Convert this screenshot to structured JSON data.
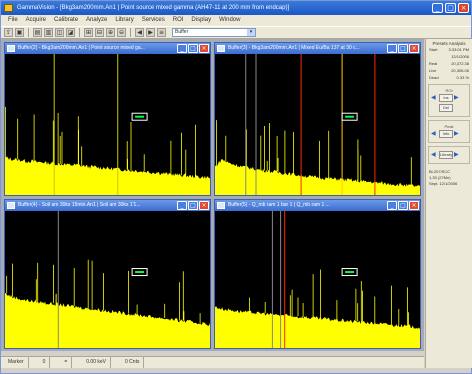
{
  "window": {
    "title": "GammaVision - [Bkg3am200mm.An1 | Point source mixed gamma (AH47-11 at 200 mm from endcap)]",
    "minimize": "_",
    "maximize": "□",
    "close": "×"
  },
  "menu": [
    "File",
    "Acquire",
    "Calibrate",
    "Analyze",
    "Library",
    "Services",
    "ROI",
    "Display",
    "Window"
  ],
  "toolbar": {
    "buttons": [
      "⇪",
      "▣",
      "▤",
      "▥",
      "◫",
      "◪",
      "⊞",
      "⊟",
      "⊕",
      "⊖",
      "◀",
      "▶",
      "≡"
    ],
    "select_value": "Buffer",
    "select_arrow": "▾"
  },
  "panels": [
    {
      "title": "Buffer(2) - Bkg3am200mm.An1 | Point source mixed ga...",
      "icon": "document-icon"
    },
    {
      "title": "Buffer(3) - Bkg3am200mm.An1 | Mixed Eu/Ba 137 at 30 c...",
      "icon": "document-icon"
    },
    {
      "title": "Buffer(4) - Soil am 30ks 15min.An1 | Soil am 30ks 1'1...",
      "icon": "document-icon"
    },
    {
      "title": "Buffer(5) - Q_mb ram 1 bar 1 | Q_mb ram 1 ...",
      "icon": "document-icon"
    }
  ],
  "status": {
    "cells": [
      "Marker",
      "0",
      "=",
      "0.00  keV",
      "0  Cnts"
    ]
  },
  "side": {
    "title": "Presets Analysis",
    "rows": [
      {
        "label": "Start",
        "value": "3:33:01 PM"
      },
      {
        "label": "",
        "value": "12/1/2006"
      },
      {
        "label": "Real",
        "value": "20,372.38"
      },
      {
        "label": "Live",
        "value": "20,306.06"
      },
      {
        "label": "Dead",
        "value": "0.33 %"
      }
    ],
    "roi_label": "ROI",
    "roi_buttons": [
      "Ins",
      "Del"
    ],
    "peak_label": "Peak",
    "peak_buttons": [
      "Info"
    ],
    "library_button": "Library",
    "bottom": [
      "Bi-207/SCC",
      "1,33 (27Mn)",
      "Sept.  12/1/2006"
    ]
  },
  "chart_data": [
    {
      "type": "area",
      "panel": 1,
      "description_note": "",
      "series": [
        {
          "values": [
            40,
            39,
            38,
            38,
            37,
            37,
            36,
            36,
            36,
            35,
            35,
            35,
            34,
            34,
            34,
            33,
            33,
            33,
            32,
            32,
            32,
            32,
            31,
            31,
            30,
            30,
            30,
            29,
            29,
            29,
            28,
            28,
            28,
            27,
            27,
            27,
            26,
            26,
            26,
            25,
            25,
            25,
            24,
            24,
            24,
            23,
            23,
            22,
            22,
            22,
            21,
            21,
            21,
            20,
            20,
            20,
            19,
            19,
            19,
            18
          ]
        }
      ],
      "peaks": [
        {
          "x": 58,
          "y": 25
        },
        {
          "x": 112,
          "y": 80
        },
        {
          "x": 118,
          "y": 70
        },
        {
          "x": 136,
          "y": 50
        },
        {
          "x": 166,
          "y": 60
        }
      ],
      "ylim": [
        0,
        150
      ]
    },
    {
      "type": "area",
      "panel": 2,
      "series": [
        {
          "values": [
            30,
            34,
            38,
            36,
            34,
            33,
            32,
            31,
            30,
            30,
            29,
            28,
            27,
            27,
            26,
            26,
            25,
            25,
            24,
            24,
            23,
            23,
            22,
            22,
            21,
            21,
            20,
            20,
            19,
            19,
            19,
            18,
            18,
            18,
            17,
            17,
            17,
            16,
            16,
            16,
            15,
            15,
            15,
            14,
            14,
            14,
            13,
            13,
            13,
            12,
            12,
            12,
            11,
            11,
            11,
            10,
            10,
            10,
            9,
            9
          ]
        }
      ],
      "ylim": [
        0,
        150
      ]
    },
    {
      "type": "area",
      "panel": 3,
      "series": [
        {
          "values": [
            60,
            58,
            56,
            55,
            54,
            53,
            52,
            52,
            51,
            51,
            50,
            50,
            49,
            49,
            48,
            48,
            47,
            47,
            46,
            46,
            45,
            45,
            44,
            44,
            43,
            43,
            42,
            42,
            41,
            41,
            40,
            40,
            39,
            39,
            38,
            38,
            37,
            37,
            36,
            36,
            35,
            35,
            34,
            34,
            33,
            33,
            32,
            32,
            31,
            31,
            30,
            30,
            29,
            29,
            28,
            28,
            27,
            27,
            26,
            26
          ]
        }
      ],
      "ylim": [
        0,
        150
      ]
    },
    {
      "type": "area",
      "panel": 4,
      "series": [
        {
          "values": [
            45,
            44,
            43,
            42,
            42,
            41,
            41,
            40,
            40,
            39,
            39,
            39,
            38,
            38,
            38,
            37,
            37,
            37,
            36,
            36,
            36,
            35,
            35,
            35,
            34,
            34,
            34,
            33,
            33,
            33,
            32,
            32,
            32,
            31,
            31,
            31,
            30,
            30,
            30,
            29,
            29,
            29,
            28,
            28,
            28,
            27,
            27,
            27,
            26,
            26,
            26,
            25,
            25,
            25,
            24,
            24,
            24,
            23,
            23,
            22
          ]
        }
      ],
      "ylim": [
        0,
        150
      ]
    }
  ]
}
